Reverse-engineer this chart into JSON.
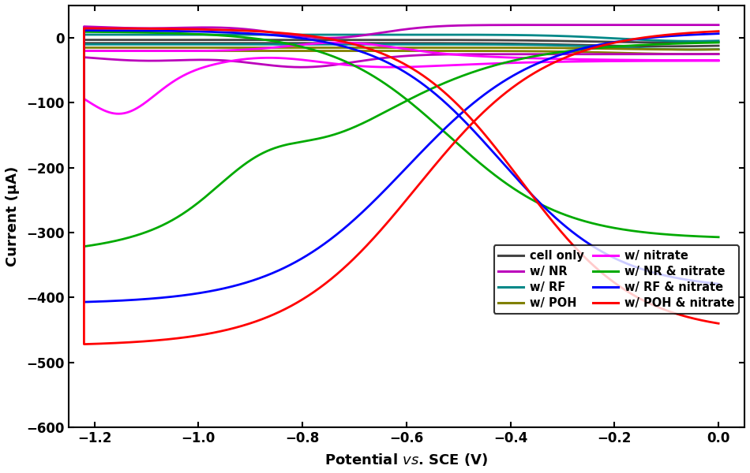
{
  "title": "",
  "xlabel_parts": [
    "Potential ",
    "vs.",
    " SCE (V)"
  ],
  "ylabel": "Current (μA)",
  "xlim": [
    -1.25,
    0.05
  ],
  "ylim": [
    -600,
    50
  ],
  "xticks": [
    -1.2,
    -1.0,
    -0.8,
    -0.6,
    -0.4,
    -0.2,
    0.0
  ],
  "yticks": [
    0,
    -100,
    -200,
    -300,
    -400,
    -500,
    -600
  ],
  "legend_entries": [
    {
      "label": "cell only",
      "color": "#444444",
      "lw": 2.0
    },
    {
      "label": "w/ NR",
      "color": "#BB00BB",
      "lw": 2.0
    },
    {
      "label": "w/ RF",
      "color": "#008888",
      "lw": 2.0
    },
    {
      "label": "w/ POH",
      "color": "#808000",
      "lw": 2.0
    },
    {
      "label": "w/ nitrate",
      "color": "#FF00FF",
      "lw": 2.0
    },
    {
      "label": "w/ NR & nitrate",
      "color": "#00AA00",
      "lw": 2.0
    },
    {
      "label": "w/ RF & nitrate",
      "color": "#0000FF",
      "lw": 2.0
    },
    {
      "label": "w/ POH & nitrate",
      "color": "#FF0000",
      "lw": 2.0
    }
  ],
  "background_color": "#ffffff",
  "figure_bg": "#ffffff"
}
